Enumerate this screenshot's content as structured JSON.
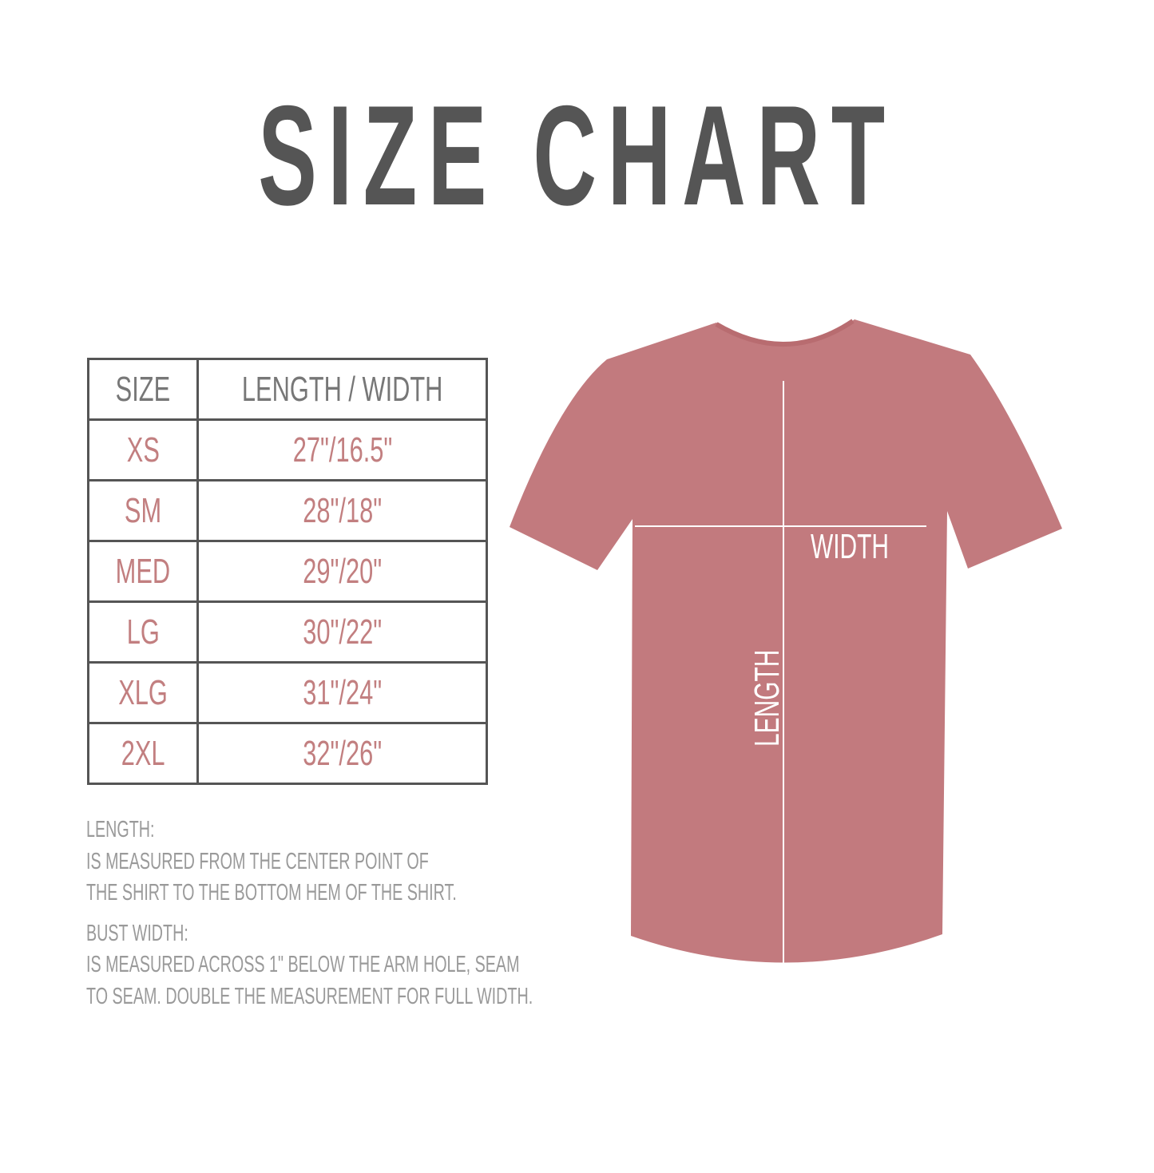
{
  "title": "SIZE CHART",
  "table": {
    "headers": [
      "SIZE",
      "LENGTH / WIDTH"
    ],
    "rows": [
      {
        "size": "XS",
        "measure": "27\"/16.5\""
      },
      {
        "size": "SM",
        "measure": "28\"/18\""
      },
      {
        "size": "MED",
        "measure": "29\"/20\""
      },
      {
        "size": "LG",
        "measure": "30\"/22\""
      },
      {
        "size": "XLG",
        "measure": "31\"/24\""
      },
      {
        "size": "2XL",
        "measure": "32\"/26\""
      }
    ]
  },
  "notes": {
    "length_heading": "LENGTH:",
    "length_lines": [
      "IS MEASURED FROM THE CENTER POINT OF",
      "THE SHIRT TO THE BOTTOM HEM OF THE SHIRT."
    ],
    "width_heading": "BUST WIDTH:",
    "width_lines": [
      "IS MEASURED ACROSS  1\" BELOW THE ARM HOLE, SEAM",
      "TO SEAM. DOUBLE THE MEASUREMENT FOR FULL WIDTH."
    ]
  },
  "diagram": {
    "width_label": "WIDTH",
    "length_label": "LENGTH"
  },
  "colors": {
    "title": "#555555",
    "table_border": "#555555",
    "header_text": "#777777",
    "value_text": "#c27f80",
    "notes_text": "#9a9a9a",
    "shirt": "#c27a7e"
  }
}
